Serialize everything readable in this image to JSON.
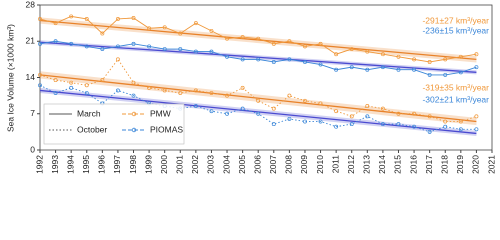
{
  "chart_data": {
    "type": "line",
    "y_label": "Sea Ice Volume (×1000 km³)",
    "x": [
      1992,
      1993,
      1994,
      1995,
      1996,
      1997,
      1998,
      1999,
      2000,
      2001,
      2002,
      2003,
      2004,
      2005,
      2006,
      2007,
      2008,
      2009,
      2010,
      2011,
      2012,
      2013,
      2014,
      2015,
      2016,
      2017,
      2018,
      2019,
      2020
    ],
    "xlim": [
      1992,
      2021
    ],
    "xticks": [
      1992,
      1993,
      1994,
      1995,
      1996,
      1997,
      1998,
      1999,
      2000,
      2001,
      2002,
      2003,
      2004,
      2005,
      2006,
      2007,
      2008,
      2009,
      2010,
      2011,
      2012,
      2013,
      2014,
      2015,
      2016,
      2017,
      2018,
      2019,
      2020,
      2021
    ],
    "ylim": [
      0,
      28
    ],
    "yticks": [
      0,
      7,
      14,
      21,
      28
    ],
    "trend_x": [
      1992,
      2020
    ],
    "legend": {
      "styles": [
        "March",
        "October"
      ],
      "sources": [
        {
          "name": "PMW",
          "color": "#f0983a"
        },
        {
          "name": "PIOMAS",
          "color": "#3a86d8"
        }
      ]
    },
    "series": [
      {
        "source": 0,
        "style": 0,
        "trend_color": "#e8822a",
        "values": [
          25.3,
          24.5,
          25.8,
          25.3,
          22.5,
          25.3,
          25.5,
          23.5,
          23.7,
          22.5,
          24.5,
          23.0,
          21.5,
          21.8,
          21.5,
          20.5,
          21.0,
          20.0,
          20.5,
          18.5,
          19.5,
          19.0,
          18.5,
          18.0,
          17.5,
          17.0,
          17.5,
          18.0,
          18.5
        ],
        "trend": [
          25.0,
          17.5
        ],
        "trend_band": 0.6
      },
      {
        "source": 1,
        "style": 0,
        "trend_color": "#4a4ad0",
        "values": [
          20.5,
          21.0,
          20.5,
          20.0,
          19.5,
          20.0,
          20.5,
          20.0,
          19.5,
          19.5,
          19.0,
          19.0,
          18.0,
          17.5,
          17.5,
          17.0,
          17.5,
          17.0,
          16.5,
          15.5,
          16.0,
          15.5,
          16.0,
          15.5,
          15.5,
          14.5,
          14.5,
          15.0,
          16.0
        ],
        "trend": [
          20.8,
          15.0
        ],
        "trend_band": 0.4
      },
      {
        "source": 0,
        "style": 1,
        "trend_color": "#e8822a",
        "values": [
          14.5,
          13.5,
          13.0,
          12.5,
          13.5,
          17.5,
          13.0,
          12.0,
          11.5,
          11.0,
          11.5,
          11.0,
          10.5,
          12.0,
          9.5,
          8.0,
          10.5,
          9.5,
          9.0,
          7.5,
          6.5,
          8.5,
          8.0,
          7.0,
          7.0,
          6.5,
          5.5,
          5.5,
          6.5
        ],
        "trend": [
          14.5,
          5.5
        ],
        "trend_band": 0.7
      },
      {
        "source": 1,
        "style": 1,
        "trend_color": "#4a4ad0",
        "values": [
          12.5,
          11.0,
          12.0,
          11.0,
          9.0,
          11.5,
          10.5,
          9.0,
          8.5,
          8.0,
          8.5,
          7.5,
          7.0,
          8.0,
          7.0,
          5.0,
          6.0,
          5.5,
          5.5,
          4.5,
          5.0,
          6.5,
          5.0,
          5.0,
          4.5,
          3.5,
          4.5,
          4.0,
          4.0
        ],
        "trend": [
          11.5,
          3.2
        ],
        "trend_band": 0.5
      }
    ],
    "annotations": [
      {
        "text": "-291±27 km³/year",
        "color": "#f0983a"
      },
      {
        "text": "-236±15 km³/year",
        "color": "#3a86d8"
      },
      {
        "text": "-319±35 km³/year",
        "color": "#f0983a"
      },
      {
        "text": "-302±21 km³/year",
        "color": "#3a86d8"
      }
    ]
  }
}
